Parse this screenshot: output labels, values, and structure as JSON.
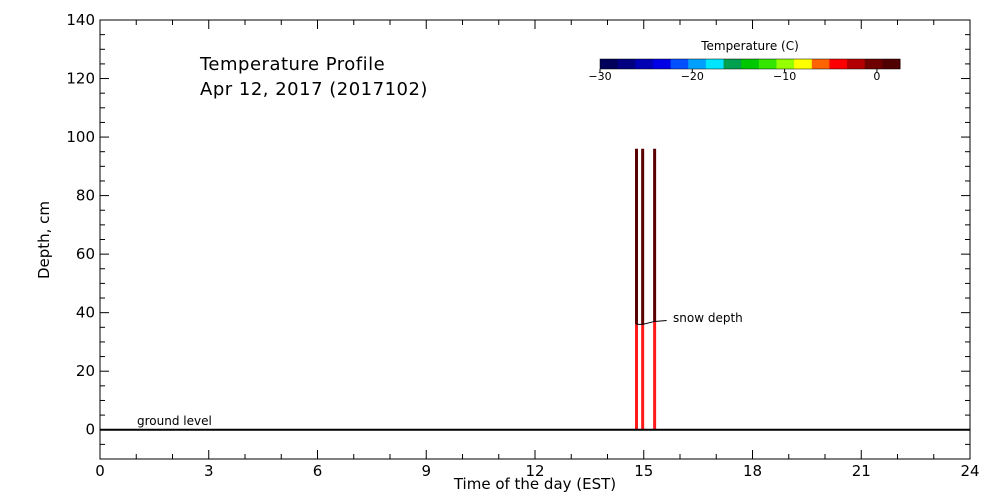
{
  "chart_data": {
    "type": "line",
    "title": "Temperature Profile",
    "subtitle": "Apr 12, 2017 (2017102)",
    "xlabel": "Time of the day (EST)",
    "ylabel": "Depth, cm",
    "xlim": [
      0,
      24
    ],
    "ylim": [
      -10,
      140
    ],
    "xticks": [
      0,
      3,
      6,
      9,
      12,
      15,
      18,
      21,
      24
    ],
    "yticks": [
      0,
      20,
      40,
      60,
      80,
      100,
      120,
      140
    ],
    "grid": false,
    "colorbar": {
      "title": "Temperature (C)",
      "ticks": [
        -30,
        -20,
        -10,
        0
      ],
      "range": [
        -30,
        2.5
      ],
      "colors": [
        "#00005a",
        "#000080",
        "#0000b4",
        "#0000e6",
        "#0050ff",
        "#00a0ff",
        "#00e6ff",
        "#00a050",
        "#00c800",
        "#32e600",
        "#96ff00",
        "#ffff00",
        "#ff6400",
        "#ff0000",
        "#b40000",
        "#6e0000",
        "#500000"
      ]
    },
    "profiles": [
      {
        "time": 14.8,
        "top_depth": 96,
        "snow_depth": 36,
        "air_color": "#5a0000",
        "snow_color": "#ff1a1a"
      },
      {
        "time": 14.97,
        "top_depth": 96,
        "snow_depth": 36,
        "air_color": "#5a0000",
        "snow_color": "#ff1a1a"
      },
      {
        "time": 15.3,
        "top_depth": 96,
        "snow_depth": 37,
        "air_color": "#5a0000",
        "snow_color": "#ff1a1a"
      }
    ],
    "ground_level": {
      "depth": 0,
      "label": "ground level"
    },
    "snow_depth_label": "snow depth"
  }
}
